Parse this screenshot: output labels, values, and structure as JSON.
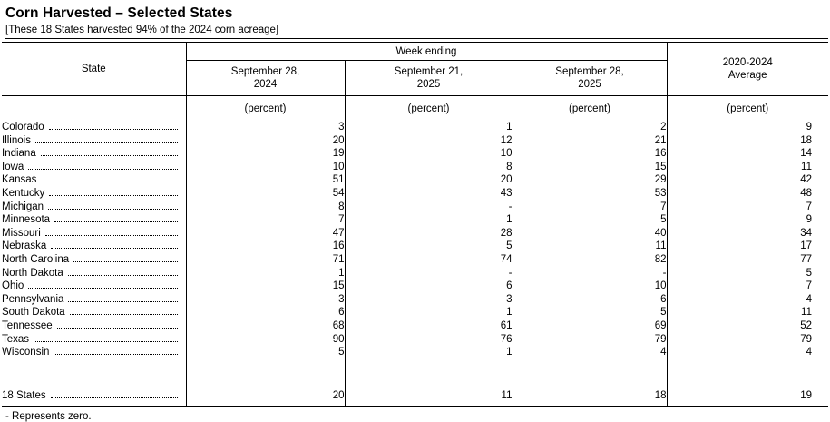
{
  "title": "Corn Harvested – Selected States",
  "subtitle": "[These 18 States harvested 94% of the 2024 corn acreage]",
  "footnote": "- Represents zero.",
  "table": {
    "state_header": "State",
    "group_header": "Week ending",
    "columns": [
      "September 28,\n2024",
      "September 21,\n2025",
      "September 28,\n2025"
    ],
    "average_header": "2020-2024\nAverage",
    "unit_label": "(percent)",
    "rows": [
      {
        "state": "Colorado",
        "values": [
          "3",
          "1",
          "2",
          "9"
        ]
      },
      {
        "state": "Illinois",
        "values": [
          "20",
          "12",
          "21",
          "18"
        ]
      },
      {
        "state": "Indiana",
        "values": [
          "19",
          "10",
          "16",
          "14"
        ]
      },
      {
        "state": "Iowa",
        "values": [
          "10",
          "8",
          "15",
          "11"
        ]
      },
      {
        "state": "Kansas",
        "values": [
          "51",
          "20",
          "29",
          "42"
        ]
      },
      {
        "state": "Kentucky",
        "values": [
          "54",
          "43",
          "53",
          "48"
        ]
      },
      {
        "state": "Michigan",
        "values": [
          "8",
          "-",
          "7",
          "7"
        ]
      },
      {
        "state": "Minnesota",
        "values": [
          "7",
          "1",
          "5",
          "9"
        ]
      },
      {
        "state": "Missouri",
        "values": [
          "47",
          "28",
          "40",
          "34"
        ]
      },
      {
        "state": "Nebraska",
        "values": [
          "16",
          "5",
          "11",
          "17"
        ]
      },
      {
        "state": "North Carolina",
        "values": [
          "71",
          "74",
          "82",
          "77"
        ]
      },
      {
        "state": "North Dakota",
        "values": [
          "1",
          "-",
          "-",
          "5"
        ]
      },
      {
        "state": "Ohio",
        "values": [
          "15",
          "6",
          "10",
          "7"
        ]
      },
      {
        "state": "Pennsylvania",
        "values": [
          "3",
          "3",
          "6",
          "4"
        ]
      },
      {
        "state": "South Dakota",
        "values": [
          "6",
          "1",
          "5",
          "11"
        ]
      },
      {
        "state": "Tennessee",
        "values": [
          "68",
          "61",
          "69",
          "52"
        ]
      },
      {
        "state": "Texas",
        "values": [
          "90",
          "76",
          "79",
          "79"
        ]
      },
      {
        "state": "Wisconsin",
        "values": [
          "5",
          "1",
          "4",
          "4"
        ]
      }
    ],
    "total_row": {
      "state": "18 States",
      "values": [
        "20",
        "11",
        "18",
        "19"
      ]
    }
  }
}
